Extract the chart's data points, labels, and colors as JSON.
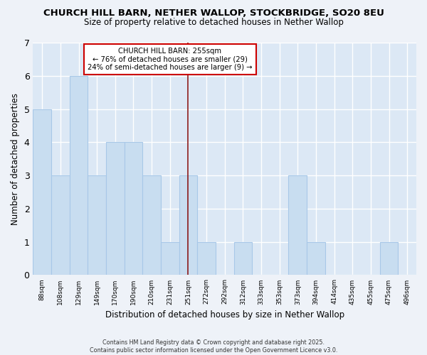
{
  "title_line1": "CHURCH HILL BARN, NETHER WALLOP, STOCKBRIDGE, SO20 8EU",
  "title_line2": "Size of property relative to detached houses in Nether Wallop",
  "xlabel": "Distribution of detached houses by size in Nether Wallop",
  "ylabel": "Number of detached properties",
  "categories": [
    "88sqm",
    "108sqm",
    "129sqm",
    "149sqm",
    "170sqm",
    "190sqm",
    "210sqm",
    "231sqm",
    "251sqm",
    "272sqm",
    "292sqm",
    "312sqm",
    "333sqm",
    "353sqm",
    "373sqm",
    "394sqm",
    "414sqm",
    "435sqm",
    "455sqm",
    "475sqm",
    "496sqm"
  ],
  "values": [
    5,
    3,
    6,
    3,
    4,
    4,
    3,
    1,
    3,
    1,
    0,
    1,
    0,
    0,
    3,
    1,
    0,
    0,
    0,
    1,
    0
  ],
  "bar_color": "#c8ddf0",
  "bar_edge_color": "#a8c8e8",
  "vline_x": 8.0,
  "vline_color": "#8b1a1a",
  "annotation_line1": "CHURCH HILL BARN: 255sqm",
  "annotation_line2": "← 76% of detached houses are smaller (29)",
  "annotation_line3": "24% of semi-detached houses are larger (9) →",
  "annotation_box_color": "#cc0000",
  "ylim": [
    0,
    7
  ],
  "yticks": [
    0,
    1,
    2,
    3,
    4,
    5,
    6,
    7
  ],
  "footnote": "Contains HM Land Registry data © Crown copyright and database right 2025.\nContains public sector information licensed under the Open Government Licence v3.0.",
  "bg_color": "#eef2f8",
  "grid_color": "#ffffff",
  "plot_bg_color": "#dce8f5"
}
